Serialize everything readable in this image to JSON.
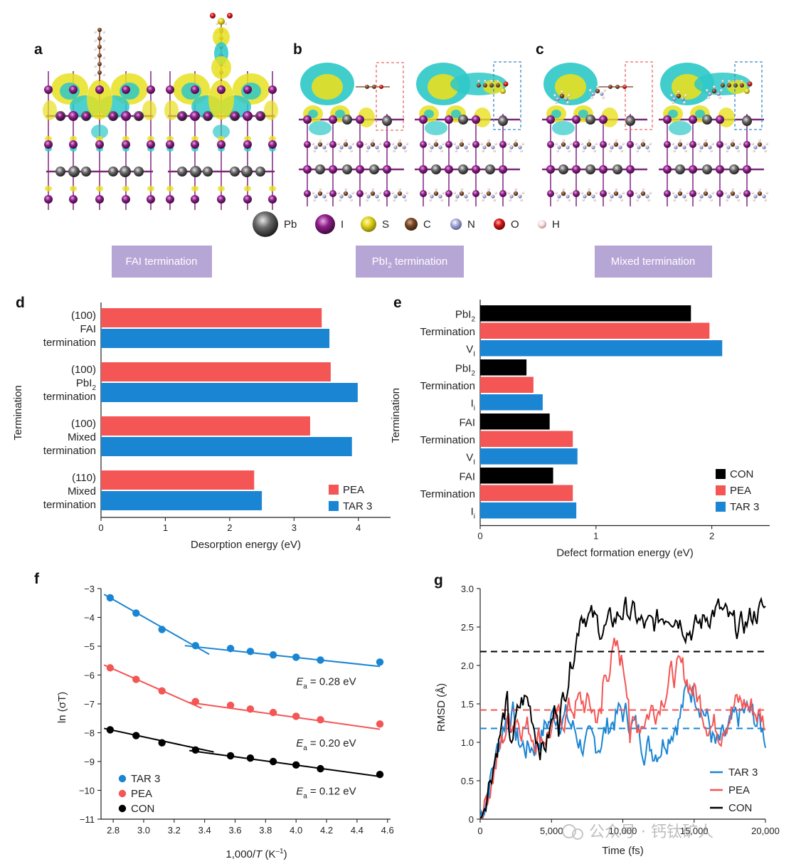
{
  "panel_labels": [
    "a",
    "b",
    "c",
    "d",
    "e",
    "f",
    "g"
  ],
  "colors": {
    "tar3": "#1a85d3",
    "pea": "#f45555",
    "con": "#000000",
    "term_box": "#b6a6d6",
    "isosurface_yellow": "#e8e020",
    "isosurface_cyan": "#2ec8c8"
  },
  "atom_legend": [
    {
      "symbol": "Pb",
      "color": "#555555"
    },
    {
      "symbol": "I",
      "color": "#8e1f8a"
    },
    {
      "symbol": "S",
      "color": "#e0d21c"
    },
    {
      "symbol": "C",
      "color": "#7a4a2a"
    },
    {
      "symbol": "N",
      "color": "#a8acd8"
    },
    {
      "symbol": "O",
      "color": "#d81818"
    },
    {
      "symbol": "H",
      "color": "#f0d8d8"
    }
  ],
  "termination_boxes": [
    {
      "label": "FAI termination",
      "sub": ""
    },
    {
      "label_pre": "PbI",
      "label_sub": "2",
      "label_post": " termination"
    },
    {
      "label": "Mixed termination",
      "sub": ""
    }
  ],
  "chart_data": [
    {
      "panel": "d",
      "type": "bar",
      "orientation": "horizontal",
      "xlabel": "Desorption energy (eV)",
      "ylabel": "Termination",
      "xlim": [
        0,
        4.5
      ],
      "xticks": [
        "0",
        "1",
        "2",
        "3",
        "4"
      ],
      "categories": [
        {
          "lines": [
            "(100)",
            "FAI",
            "termination"
          ]
        },
        {
          "lines": [
            "(100)",
            "PbI|2",
            "termination"
          ]
        },
        {
          "lines": [
            "(100)",
            "Mixed",
            "termination"
          ]
        },
        {
          "lines": [
            "(110)",
            "Mixed",
            "termination"
          ]
        }
      ],
      "series": [
        {
          "name": "PEA",
          "color": "#f45555",
          "values": [
            3.43,
            3.57,
            3.25,
            2.38
          ]
        },
        {
          "name": "TAR 3",
          "color": "#1a85d3",
          "values": [
            3.55,
            3.99,
            3.9,
            2.5
          ]
        }
      ],
      "legend_position": "bottom-right"
    },
    {
      "panel": "e",
      "type": "bar",
      "orientation": "horizontal",
      "xlabel": "Defect formation energy (eV)",
      "ylabel": "Termination",
      "xlim": [
        0,
        2.5
      ],
      "xticks": [
        "0",
        "1",
        "2"
      ],
      "categories": [
        {
          "lines": [
            "PbI|2",
            "Termination",
            "V|I"
          ]
        },
        {
          "lines": [
            "PbI|2",
            "Termination",
            "I|i"
          ]
        },
        {
          "lines": [
            "FAI",
            "Termination",
            "V|I"
          ]
        },
        {
          "lines": [
            "FAI",
            "Termination",
            "I|i"
          ]
        }
      ],
      "series": [
        {
          "name": "CON",
          "color": "#000000",
          "values": [
            1.82,
            0.4,
            0.6,
            0.63
          ]
        },
        {
          "name": "PEA",
          "color": "#f45555",
          "values": [
            1.98,
            0.46,
            0.8,
            0.8
          ]
        },
        {
          "name": "TAR 3",
          "color": "#1a85d3",
          "values": [
            2.09,
            0.54,
            0.84,
            0.83
          ]
        }
      ],
      "legend_position": "bottom-right"
    },
    {
      "panel": "f",
      "type": "scatter",
      "xlabel_pre": "1,000/",
      "xlabel_italic": "T",
      "xlabel_post": " (K",
      "xlabel_sup": "–1",
      "xlabel_end": ")",
      "ylabel": "ln (σT)",
      "xlim": [
        2.72,
        4.62
      ],
      "ylim": [
        -11,
        -3
      ],
      "xticks": [
        2.8,
        3.0,
        3.2,
        3.4,
        3.6,
        3.8,
        4.0,
        4.2,
        4.4,
        4.6
      ],
      "xtick_labels": [
        "2.8",
        "3.0",
        "3.2",
        "3.4",
        "3.6",
        "3.8",
        "4.0",
        "4.2",
        "4.4",
        "4.6"
      ],
      "yticks": [
        -3,
        -4,
        -5,
        -6,
        -7,
        -8,
        -9,
        -10,
        -11
      ],
      "ytick_labels": [
        "−3",
        "−4",
        "−5",
        "−6",
        "−7",
        "−8",
        "−9",
        "−10",
        "−11"
      ],
      "series": [
        {
          "name": "TAR 3",
          "color": "#1a85d3",
          "x": [
            2.78,
            2.95,
            3.12,
            3.34,
            3.57,
            3.7,
            3.85,
            4.0,
            4.16,
            4.55
          ],
          "y": [
            -3.32,
            -3.85,
            -4.42,
            -4.98,
            -5.08,
            -5.18,
            -5.3,
            -5.38,
            -5.48,
            -5.55
          ],
          "fits": [
            [
              [
                2.74,
                -3.2
              ],
              [
                3.43,
                -5.28
              ]
            ],
            [
              [
                3.27,
                -4.98
              ],
              [
                4.55,
                -5.7
              ]
            ]
          ],
          "annotation": {
            "pre": "E",
            "sub": "a",
            "post": " = 0.28 eV",
            "x": 4.0,
            "y": -6.35
          }
        },
        {
          "name": "PEA",
          "color": "#f45555",
          "x": [
            2.78,
            2.95,
            3.12,
            3.34,
            3.57,
            3.7,
            3.85,
            4.0,
            4.16,
            4.55
          ],
          "y": [
            -5.75,
            -6.15,
            -6.55,
            -6.92,
            -7.05,
            -7.18,
            -7.3,
            -7.43,
            -7.55,
            -7.7
          ],
          "fits": [
            [
              [
                2.74,
                -5.65
              ],
              [
                3.38,
                -7.15
              ]
            ],
            [
              [
                3.3,
                -6.95
              ],
              [
                4.55,
                -7.88
              ]
            ]
          ],
          "annotation": {
            "pre": "E",
            "sub": "a",
            "post": " = 0.20 eV",
            "x": 4.0,
            "y": -8.48
          }
        },
        {
          "name": "CON",
          "color": "#000000",
          "x": [
            2.78,
            2.95,
            3.12,
            3.34,
            3.57,
            3.7,
            3.85,
            4.0,
            4.16,
            4.55
          ],
          "y": [
            -7.9,
            -8.1,
            -8.35,
            -8.6,
            -8.8,
            -8.88,
            -9.0,
            -9.12,
            -9.25,
            -9.45
          ],
          "fits": [
            [
              [
                2.74,
                -7.85
              ],
              [
                3.46,
                -8.67
              ]
            ],
            [
              [
                3.3,
                -8.62
              ],
              [
                4.55,
                -9.52
              ]
            ]
          ],
          "annotation": {
            "pre": "E",
            "sub": "a",
            "post": " = 0.12 eV",
            "x": 4.0,
            "y": -10.15
          }
        }
      ],
      "legend_position": "bottom-left"
    },
    {
      "panel": "g",
      "type": "line",
      "xlabel": "Time (fs)",
      "ylabel": "RMSD (Å)",
      "xlim": [
        0,
        20000
      ],
      "ylim": [
        0,
        3.0
      ],
      "xticks": [
        0,
        5000,
        10000,
        15000,
        20000
      ],
      "xtick_labels": [
        "0",
        "5,000",
        "10,000",
        "15,000",
        "20,000"
      ],
      "yticks": [
        0,
        0.5,
        1.0,
        1.5,
        2.0,
        2.5,
        3.0
      ],
      "ytick_labels": [
        "0",
        "0.5",
        "1.0",
        "1.5",
        "2.0",
        "2.5",
        "3.0"
      ],
      "series": [
        {
          "name": "TAR 3",
          "color": "#1a85d3",
          "mean": 1.18
        },
        {
          "name": "PEA",
          "color": "#f45555",
          "mean": 1.42
        },
        {
          "name": "CON",
          "color": "#000000",
          "mean": 2.18
        }
      ],
      "legend_position": "bottom-right"
    }
  ],
  "watermark": "公众号 · 钙钛矿人"
}
